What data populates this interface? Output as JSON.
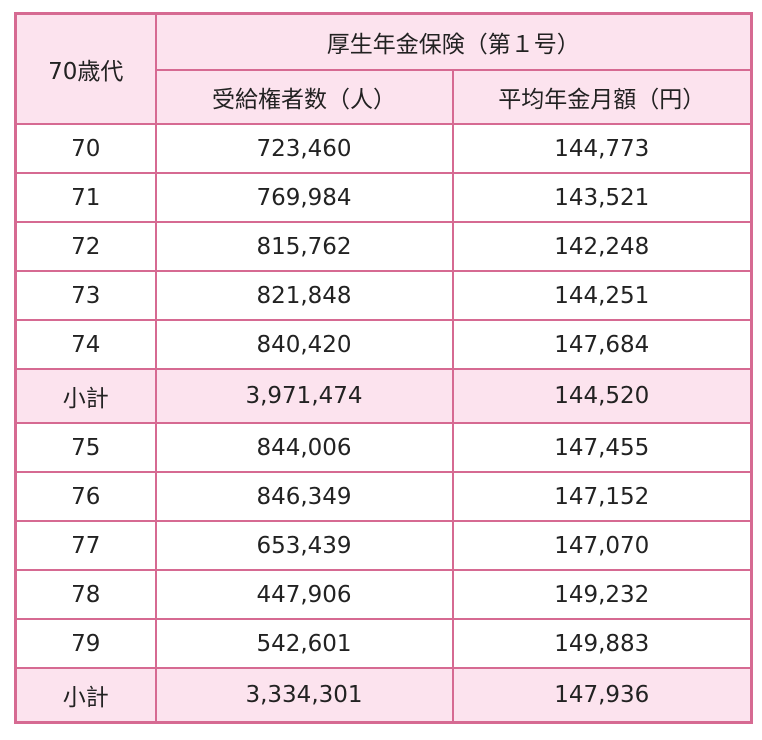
{
  "table": {
    "age_header": "70歳代",
    "group_header": "厚生年金保険（第１号）",
    "col_recipients": "受給権者数（人）",
    "col_average": "平均年金月額（円）",
    "rows": [
      {
        "age": "70",
        "recipients": "723,460",
        "average": "144,773"
      },
      {
        "age": "71",
        "recipients": "769,984",
        "average": "143,521"
      },
      {
        "age": "72",
        "recipients": "815,762",
        "average": "142,248"
      },
      {
        "age": "73",
        "recipients": "821,848",
        "average": "144,251"
      },
      {
        "age": "74",
        "recipients": "840,420",
        "average": "147,684"
      },
      {
        "age": "小計",
        "recipients": "3,971,474",
        "average": "144,520"
      },
      {
        "age": "75",
        "recipients": "844,006",
        "average": "147,455"
      },
      {
        "age": "76",
        "recipients": "846,349",
        "average": "147,152"
      },
      {
        "age": "77",
        "recipients": "653,439",
        "average": "147,070"
      },
      {
        "age": "78",
        "recipients": "447,906",
        "average": "149,232"
      },
      {
        "age": "79",
        "recipients": "542,601",
        "average": "149,883"
      },
      {
        "age": "小計",
        "recipients": "3,334,301",
        "average": "147,936"
      }
    ]
  },
  "colors": {
    "border": "#d66a92",
    "header_bg": "#fce3ee"
  }
}
